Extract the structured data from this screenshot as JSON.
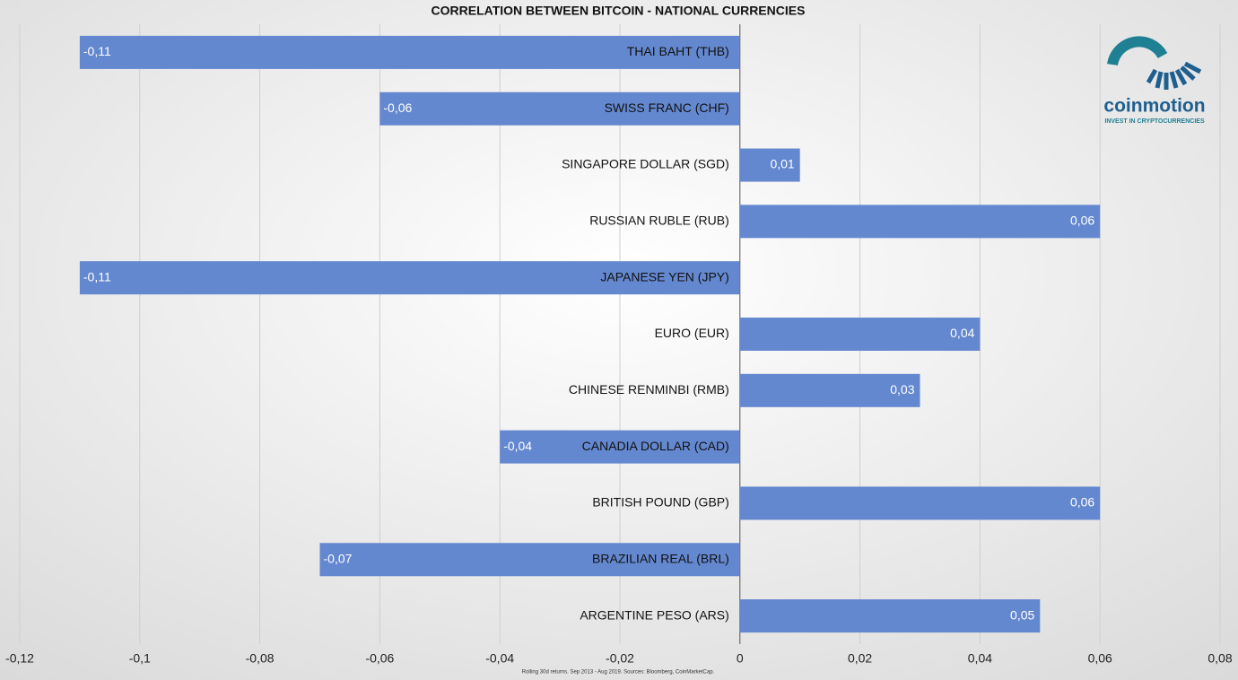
{
  "chart_data": {
    "type": "bar",
    "orientation": "horizontal",
    "title": "CORRELATION BETWEEN BITCOIN - NATIONAL CURRENCIES",
    "categories": [
      "THAI BAHT (THB)",
      "SWISS FRANC (CHF)",
      "SINGAPORE DOLLAR (SGD)",
      "RUSSIAN RUBLE (RUB)",
      "JAPANESE YEN (JPY)",
      "EURO (EUR)",
      "CHINESE RENMINBI (RMB)",
      "CANADIA DOLLAR (CAD)",
      "BRITISH POUND (GBP)",
      "BRAZILIAN REAL (BRL)",
      "ARGENTINE PESO (ARS)"
    ],
    "values": [
      -0.11,
      -0.06,
      0.01,
      0.06,
      -0.11,
      0.04,
      0.03,
      -0.04,
      0.06,
      -0.07,
      0.05
    ],
    "value_labels": [
      "-0,11",
      "-0,06",
      "0,01",
      "0,06",
      "-0,11",
      "0,04",
      "0,03",
      "-0,04",
      "0,06",
      "-0,07",
      "0,05"
    ],
    "color": "#6488cf",
    "xlim": [
      -0.12,
      0.08
    ],
    "xticks": [
      {
        "value": -0.12,
        "label": "-0,12"
      },
      {
        "value": -0.1,
        "label": "-0,1"
      },
      {
        "value": -0.08,
        "label": "-0,08"
      },
      {
        "value": -0.06,
        "label": "-0,06"
      },
      {
        "value": -0.04,
        "label": "-0,04"
      },
      {
        "value": -0.02,
        "label": "-0,02"
      },
      0,
      {
        "value": 0.02,
        "label": "0,02"
      },
      {
        "value": 0.04,
        "label": "0,04"
      },
      {
        "value": 0.06,
        "label": "0,06"
      },
      {
        "value": 0.08,
        "label": "0,08"
      }
    ],
    "grid": true,
    "footnote": "Rolling 30d returns. Sep 2013 - Aug 2019. Sources: Bloomberg, CoinMarketCap."
  },
  "logo": {
    "name": "coinmotion",
    "tagline": "INVEST IN CRYPTOCURRENCIES"
  }
}
